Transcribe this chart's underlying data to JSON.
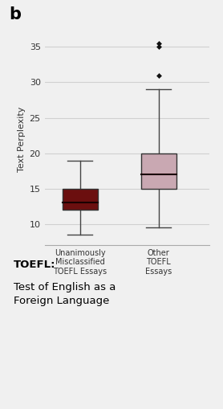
{
  "box1": {
    "whisker_low": 8.5,
    "q1": 12.0,
    "median": 13.0,
    "q3": 15.0,
    "whisker_high": 19.0,
    "outliers": [],
    "color": "#6B0F0F",
    "label": "Unanimously\nMisclassified\nTOEFL Essays"
  },
  "box2": {
    "whisker_low": 9.5,
    "q1": 15.0,
    "median": 17.0,
    "q3": 20.0,
    "whisker_high": 29.0,
    "outliers": [
      31.0,
      35.0,
      35.5
    ],
    "color": "#C9A8B2",
    "label": "Other\nTOEFL\nEssays"
  },
  "ylabel": "Text Perplexity",
  "ylim": [
    7,
    37
  ],
  "yticks": [
    10,
    15,
    20,
    25,
    30,
    35
  ],
  "panel_label": "b",
  "annotation_bold": "TOEFL:",
  "annotation_text": "Test of English as a\nForeign Language",
  "background_color": "#f0f0f0",
  "box_width": 0.45,
  "median_color": "#1a0000",
  "whisker_color": "#444444",
  "outlier_color": "#111111",
  "grid_color": "#d0d0d0",
  "spine_color": "#aaaaaa"
}
